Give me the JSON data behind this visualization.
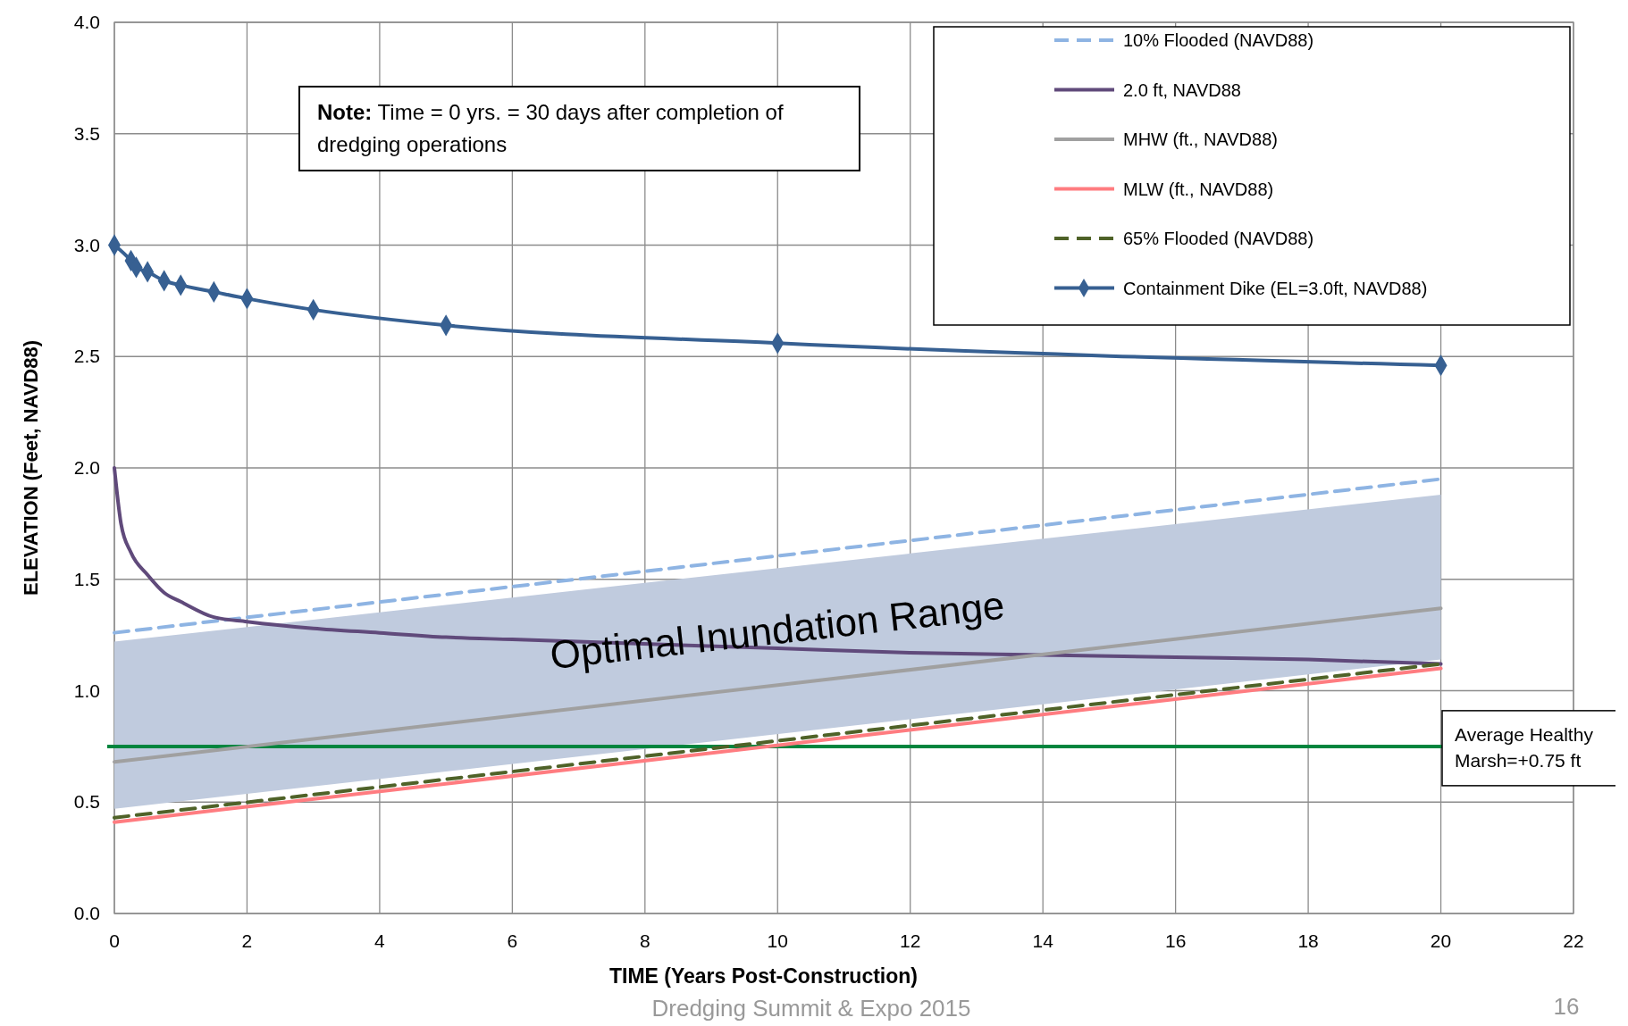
{
  "chart_data": {
    "type": "line",
    "xlabel": "TIME  (Years Post-Construction)",
    "ylabel": "ELEVATION (Feet, NAVD88)",
    "xlim": [
      0,
      22
    ],
    "xticks": [
      0,
      2,
      4,
      6,
      8,
      10,
      12,
      14,
      16,
      18,
      20,
      22
    ],
    "ylim": [
      0,
      4
    ],
    "yticks": [
      {
        "value": 0,
        "label": "0.0"
      },
      {
        "value": 0.5,
        "label": "0.5"
      },
      {
        "value": 1,
        "label": "1.0"
      },
      {
        "value": 1.5,
        "label": "1.5"
      },
      {
        "value": 2,
        "label": "2.0"
      },
      {
        "value": 2.5,
        "label": "2.5"
      },
      {
        "value": 3,
        "label": "3.0"
      },
      {
        "value": 3.5,
        "label": "3.5"
      },
      {
        "value": 4,
        "label": "4.0"
      }
    ],
    "grid": true,
    "legend": "top right",
    "series": [
      {
        "name": "10% Flooded (NAVD88)",
        "color": "#8eb4e3",
        "line_style": "dashed",
        "marker": "none",
        "x": [
          0,
          20
        ],
        "values": [
          1.26,
          1.95
        ]
      },
      {
        "name": "2.0 ft, NAVD88",
        "color": "#604a7b",
        "line_style": "solid",
        "marker": "none",
        "x": [
          0,
          0.1,
          0.25,
          0.5,
          0.75,
          1,
          1.5,
          2,
          3,
          4,
          5,
          6,
          10,
          12,
          14,
          16,
          18,
          20
        ],
        "values": [
          2.0,
          1.75,
          1.62,
          1.52,
          1.44,
          1.4,
          1.33,
          1.31,
          1.28,
          1.26,
          1.24,
          1.23,
          1.19,
          1.17,
          1.16,
          1.15,
          1.14,
          1.12
        ]
      },
      {
        "name": "MHW (ft., NAVD88)",
        "color": "#a0a0a0",
        "line_style": "solid",
        "marker": "none",
        "x": [
          0,
          20
        ],
        "values": [
          0.68,
          1.37
        ],
        "lower": [
          0.47,
          1.14
        ],
        "upper": [
          1.22,
          1.88
        ]
      },
      {
        "name": "MLW (ft., NAVD88)",
        "color": "#ff7c80",
        "line_style": "solid",
        "marker": "none",
        "x": [
          0,
          20
        ],
        "values": [
          0.41,
          1.1
        ]
      },
      {
        "name": "65% Flooded (NAVD88)",
        "color": "#4f6228",
        "line_style": "dashed",
        "marker": "none",
        "x": [
          0,
          20
        ],
        "values": [
          0.43,
          1.12
        ]
      },
      {
        "name": "Containment Dike (EL=3.0ft, NAVD88)",
        "color": "#376092",
        "line_style": "solid",
        "marker": "diamond",
        "x": [
          0,
          0.25,
          0.33,
          0.5,
          0.75,
          1,
          1.5,
          2,
          3,
          5,
          10,
          20
        ],
        "values": [
          3.0,
          2.93,
          2.9,
          2.88,
          2.84,
          2.82,
          2.79,
          2.76,
          2.71,
          2.64,
          2.56,
          2.46
        ]
      }
    ],
    "ref_lines": [
      {
        "axis": "y",
        "value": 0.75,
        "label": "Average Healthy Marsh=+0.75 ft",
        "color": "#00853e"
      }
    ],
    "annotations": [
      "Optimal Inundation Range",
      "Note: Time = 0 yrs. = 30 days after completion of dredging operations",
      "Dredging Summit & Expo 2015",
      "16"
    ]
  }
}
